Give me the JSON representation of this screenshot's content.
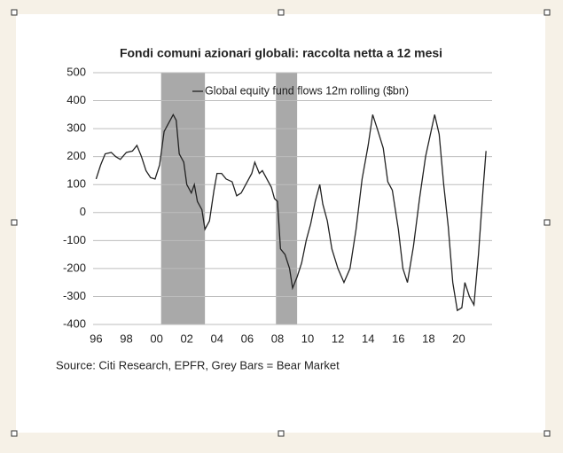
{
  "chart_data": {
    "type": "line",
    "title": "Fondi comuni azionari globali: raccolta netta a 12 mesi",
    "source": "Source: Citi Research, EPFR, Grey Bars = Bear Market",
    "xlim": [
      1995.8,
      2022.2
    ],
    "ylim": [
      -400,
      500
    ],
    "xticks": [
      {
        "value": 1996,
        "label": "96"
      },
      {
        "value": 1998,
        "label": "98"
      },
      {
        "value": 2000,
        "label": "00"
      },
      {
        "value": 2002,
        "label": "02"
      },
      {
        "value": 2004,
        "label": "04"
      },
      {
        "value": 2006,
        "label": "06"
      },
      {
        "value": 2008,
        "label": "08"
      },
      {
        "value": 2010,
        "label": "10"
      },
      {
        "value": 2012,
        "label": "12"
      },
      {
        "value": 2014,
        "label": "14"
      },
      {
        "value": 2016,
        "label": "16"
      },
      {
        "value": 2018,
        "label": "18"
      },
      {
        "value": 2020,
        "label": "20"
      }
    ],
    "yticks": [
      -400,
      -300,
      -200,
      -100,
      0,
      100,
      200,
      300,
      400,
      500
    ],
    "grid": true,
    "shaded_ranges": [
      [
        2000.3,
        2003.2
      ],
      [
        2007.9,
        2009.3
      ]
    ],
    "shade_color": "#a9a9a9",
    "series": [
      {
        "name": "Global equity fund flows 12m rolling ($bn)",
        "color": "#222222",
        "x": [
          1996.0,
          1996.3,
          1996.6,
          1997.0,
          1997.3,
          1997.6,
          1998.0,
          1998.4,
          1998.7,
          1999.0,
          1999.3,
          1999.6,
          1999.9,
          2000.2,
          2000.5,
          2000.8,
          2001.1,
          2001.3,
          2001.5,
          2001.8,
          2002.0,
          2002.3,
          2002.5,
          2002.7,
          2003.0,
          2003.2,
          2003.5,
          2003.8,
          2004.0,
          2004.3,
          2004.6,
          2005.0,
          2005.3,
          2005.6,
          2006.0,
          2006.3,
          2006.5,
          2006.8,
          2007.0,
          2007.3,
          2007.6,
          2007.8,
          2008.0,
          2008.2,
          2008.5,
          2008.8,
          2009.0,
          2009.3,
          2009.6,
          2009.9,
          2010.2,
          2010.5,
          2010.8,
          2011.0,
          2011.3,
          2011.6,
          2012.0,
          2012.4,
          2012.8,
          2013.2,
          2013.6,
          2014.0,
          2014.3,
          2014.6,
          2015.0,
          2015.3,
          2015.6,
          2016.0,
          2016.3,
          2016.6,
          2017.0,
          2017.4,
          2017.8,
          2018.2,
          2018.4,
          2018.7,
          2019.0,
          2019.3,
          2019.6,
          2019.9,
          2020.2,
          2020.4,
          2020.7,
          2021.0,
          2021.3,
          2021.6,
          2021.8
        ],
        "values": [
          120,
          170,
          210,
          215,
          200,
          190,
          215,
          220,
          240,
          200,
          150,
          125,
          120,
          170,
          290,
          320,
          350,
          330,
          210,
          180,
          100,
          70,
          100,
          40,
          10,
          -60,
          -30,
          80,
          140,
          140,
          120,
          110,
          60,
          70,
          110,
          140,
          180,
          140,
          150,
          120,
          90,
          50,
          40,
          -130,
          -150,
          -200,
          -270,
          -230,
          -180,
          -100,
          -40,
          40,
          100,
          30,
          -30,
          -130,
          -200,
          -250,
          -200,
          -60,
          120,
          240,
          350,
          300,
          230,
          110,
          80,
          -60,
          -200,
          -250,
          -120,
          50,
          200,
          300,
          350,
          280,
          100,
          -50,
          -250,
          -350,
          -340,
          -250,
          -300,
          -330,
          -150,
          80,
          220
        ]
      }
    ]
  }
}
